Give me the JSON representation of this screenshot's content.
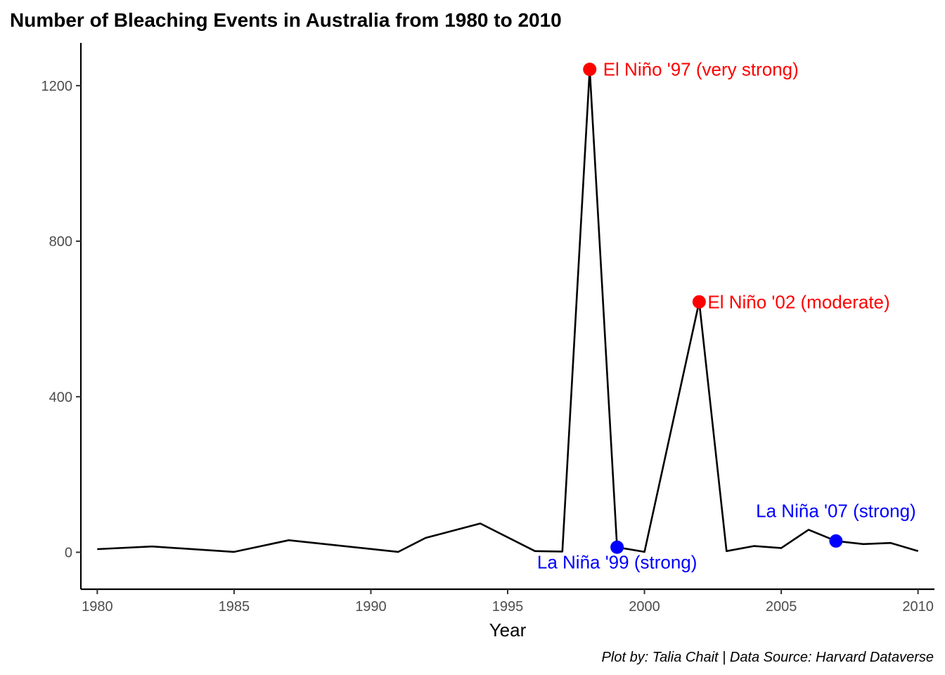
{
  "chart_data": {
    "type": "line",
    "title": "Number of Bleaching Events in Australia from 1980 to 2010",
    "xlabel": "Year",
    "ylabel": "",
    "caption": "Plot by: Talia Chait | Data Source: Harvard Dataverse",
    "xlim": [
      1979.4,
      2010.6
    ],
    "ylim": [
      -95,
      1310
    ],
    "x_ticks": [
      1980,
      1985,
      1990,
      1995,
      2000,
      2005,
      2010
    ],
    "y_ticks": [
      0,
      400,
      800,
      1200
    ],
    "grid": false,
    "line_color": "#000000",
    "series": [
      {
        "x": [
          1980,
          1982,
          1985,
          1987,
          1991,
          1992,
          1994,
          1996,
          1997,
          1998,
          1999,
          2000,
          2002,
          2003,
          2004,
          2005,
          2006,
          2007,
          2008,
          2009,
          2010
        ],
        "values": [
          8,
          15,
          1,
          31,
          1,
          37,
          74,
          3,
          2,
          1242,
          13,
          1,
          644,
          3,
          16,
          11,
          58,
          29,
          21,
          24,
          3
        ]
      }
    ],
    "annotations": [
      {
        "x": 1998,
        "y": 1242,
        "label": "El Niño '97 (very strong)",
        "color": "#ff0000",
        "position": "right"
      },
      {
        "x": 2002,
        "y": 644,
        "label": "El Niño '02 (moderate)",
        "color": "#ff0000",
        "position": "right"
      },
      {
        "x": 1999,
        "y": 13,
        "label": "La Niña '99 (strong)",
        "color": "#0000ff",
        "position": "below"
      },
      {
        "x": 2007,
        "y": 29,
        "label": "La Niña '07 (strong)",
        "color": "#0000ff",
        "position": "above"
      }
    ]
  }
}
